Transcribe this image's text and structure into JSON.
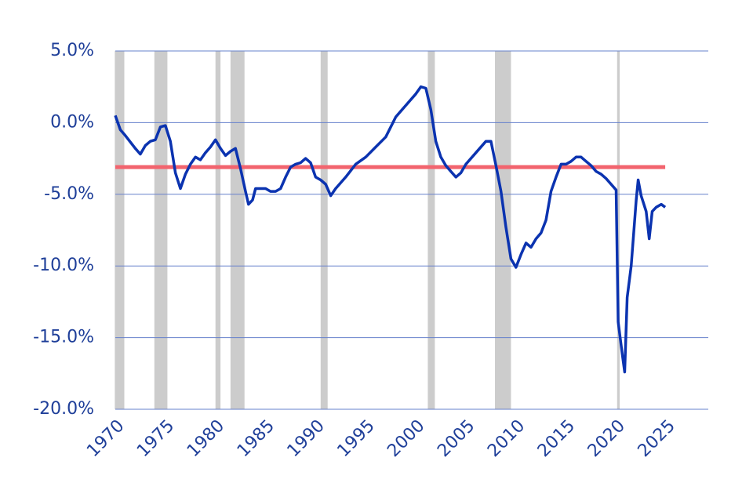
{
  "chart_data": {
    "type": "line",
    "x": [
      1970.0,
      1970.5,
      1971,
      1972,
      1972.5,
      1973,
      1973.5,
      1974,
      1974.5,
      1975,
      1975.5,
      1976,
      1976.5,
      1977,
      1977.5,
      1978,
      1978.5,
      1979,
      1979.5,
      1980,
      1980.5,
      1981,
      1981.5,
      1982,
      1982.5,
      1983,
      1983.3,
      1983.7,
      1984,
      1985,
      1985.5,
      1986,
      1986.5,
      1987,
      1987.5,
      1988,
      1988.5,
      1989,
      1989.5,
      1990,
      1990.5,
      1991,
      1991.5,
      1992,
      1993,
      1994,
      1995,
      1996,
      1997,
      1998,
      1999,
      2000,
      2000.5,
      2001,
      2001.5,
      2002,
      2002.5,
      2003,
      2003.5,
      2004,
      2004.5,
      2005,
      2006,
      2007,
      2007.5,
      2008,
      2008.5,
      2009,
      2009.5,
      2010,
      2010.5,
      2011,
      2011.5,
      2012,
      2012.5,
      2013,
      2013.5,
      2014,
      2014.5,
      2015,
      2015.5,
      2016,
      2016.5,
      2017,
      2017.5,
      2018,
      2018.5,
      2019,
      2019.5,
      2020,
      2020.2,
      2020.6,
      2020.85,
      2021.1,
      2021.5,
      2022,
      2022.2,
      2022.5,
      2023,
      2023.3,
      2023.6,
      2024,
      2024.5,
      2024.9
    ],
    "series": [
      {
        "color": "#0b33b0",
        "values": [
          0.5,
          -0.5,
          -0.9,
          -1.8,
          -2.2,
          -1.6,
          -1.3,
          -1.2,
          -0.3,
          -0.2,
          -1.3,
          -3.5,
          -4.6,
          -3.6,
          -2.9,
          -2.4,
          -2.6,
          -2.1,
          -1.7,
          -1.2,
          -1.8,
          -2.3,
          -2.0,
          -1.8,
          -3.2,
          -4.8,
          -5.7,
          -5.4,
          -4.6,
          -4.6,
          -4.8,
          -4.8,
          -4.6,
          -3.8,
          -3.1,
          -2.9,
          -2.8,
          -2.5,
          -2.8,
          -3.8,
          -4.0,
          -4.3,
          -5.1,
          -4.6,
          -3.8,
          -2.9,
          -2.4,
          -1.7,
          -1.0,
          0.4,
          1.2,
          2.0,
          2.5,
          2.4,
          0.9,
          -1.3,
          -2.4,
          -3.0,
          -3.4,
          -3.8,
          -3.5,
          -2.9,
          -2.1,
          -1.3,
          -1.3,
          -3.0,
          -4.8,
          -7.3,
          -9.5,
          -10.1,
          -9.2,
          -8.4,
          -8.7,
          -8.1,
          -7.7,
          -6.8,
          -4.8,
          -3.8,
          -2.9,
          -2.9,
          -2.7,
          -2.4,
          -2.4,
          -2.7,
          -3.0,
          -3.4,
          -3.6,
          -3.9,
          -4.3,
          -4.7,
          -13.9,
          -16.1,
          -17.4,
          -12.2,
          -10.0,
          -5.4,
          -4.0,
          -5.1,
          -6.2,
          -8.1,
          -6.2,
          -5.9,
          -5.7,
          -5.9
        ]
      }
    ],
    "average": {
      "value": -3.1,
      "color": "#f2646e"
    },
    "recessions": [
      [
        1969.95,
        1970.9
      ],
      [
        1973.9,
        1975.2
      ],
      [
        1980.0,
        1980.5
      ],
      [
        1981.5,
        1982.9
      ],
      [
        1990.5,
        1991.2
      ],
      [
        2001.2,
        2001.9
      ],
      [
        2007.9,
        2009.5
      ],
      [
        2020.1,
        2020.35
      ]
    ],
    "recession_color": "#cccccc",
    "xlim": [
      1970,
      2029.2
    ],
    "xticks": [
      1970,
      1975,
      1980,
      1985,
      1990,
      1995,
      2000,
      2005,
      2010,
      2015,
      2020,
      2025
    ],
    "ylim": [
      -20,
      5
    ],
    "yticks": [
      {
        "value": 5,
        "label": "5.0%"
      },
      {
        "value": 0,
        "label": "0.0%"
      },
      {
        "value": -5,
        "label": "-5.0%"
      },
      {
        "value": -10,
        "label": "-10.0%"
      },
      {
        "value": -15,
        "label": "-15.0%"
      },
      {
        "value": -20,
        "label": "-20.0%"
      }
    ],
    "grid": true,
    "grid_color": "#6680cc"
  }
}
